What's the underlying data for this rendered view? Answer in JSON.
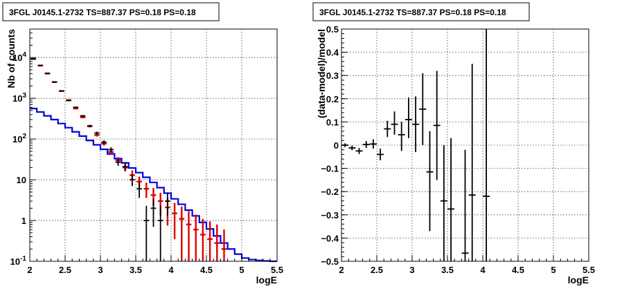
{
  "colors": {
    "data": "#000000",
    "model_sum": "#dd0000",
    "model_source": "#0000dd"
  },
  "chart_data": [
    {
      "type": "scatter",
      "title": "3FGL J0145.1-2732 TS=887.37 PS=0.18 PS=0.18",
      "xlabel": "logE",
      "ylabel": "Nb of counts",
      "xlim": [
        2,
        5.5
      ],
      "ylim": [
        0.1,
        50000
      ],
      "yscale": "log",
      "grid": true,
      "x_ticks": [
        {
          "v": 2,
          "label": "2"
        },
        {
          "v": 2.5,
          "label": "2.5"
        },
        {
          "v": 3,
          "label": "3"
        },
        {
          "v": 3.5,
          "label": "3.5"
        },
        {
          "v": 4,
          "label": "4"
        },
        {
          "v": 4.5,
          "label": "4.5"
        },
        {
          "v": 5,
          "label": "5"
        },
        {
          "v": 5.5,
          "label": "5.5"
        }
      ],
      "y_ticks": [
        {
          "v": 0.1,
          "base": "10",
          "exp": "-1"
        },
        {
          "v": 1,
          "base": "1",
          "exp": ""
        },
        {
          "v": 10,
          "base": "10",
          "exp": ""
        },
        {
          "v": 100,
          "base": "10",
          "exp": "2"
        },
        {
          "v": 1000,
          "base": "10",
          "exp": "3"
        },
        {
          "v": 10000,
          "base": "10",
          "exp": "4"
        }
      ],
      "bin_edges": [
        2.0,
        2.1,
        2.2,
        2.3,
        2.4,
        2.5,
        2.6,
        2.7,
        2.8,
        2.9,
        3.0,
        3.1,
        3.2,
        3.3,
        3.4,
        3.5,
        3.6,
        3.7,
        3.8,
        3.9,
        4.0,
        4.1,
        4.2,
        4.3,
        4.4,
        4.5,
        4.6,
        4.7,
        4.8,
        4.9,
        5.0,
        5.1,
        5.2,
        5.3,
        5.4,
        5.5
      ],
      "series": [
        {
          "role": "model_source",
          "style": "step",
          "values": [
            560,
            460,
            370,
            300,
            240,
            190,
            150,
            118,
            92,
            72,
            56,
            43,
            33,
            26,
            19.5,
            15,
            11.5,
            8.6,
            6.4,
            4.7,
            3.4,
            2.5,
            1.8,
            1.3,
            0.9,
            0.62,
            0.42,
            0.28,
            0.2,
            0.15,
            0.12,
            0.11,
            0.105,
            0.102,
            0.1
          ]
        },
        {
          "role": "model_sum",
          "style": "errorbar",
          "points": [
            {
              "x": 2.05,
              "y": 9200
            },
            {
              "x": 2.15,
              "y": 6400
            },
            {
              "x": 2.25,
              "y": 4100
            },
            {
              "x": 2.35,
              "y": 2500
            },
            {
              "x": 2.45,
              "y": 1500
            },
            {
              "x": 2.55,
              "y": 900,
              "lo": 860,
              "hi": 940
            },
            {
              "x": 2.65,
              "y": 560,
              "lo": 535,
              "hi": 585
            },
            {
              "x": 2.75,
              "y": 340,
              "lo": 322,
              "hi": 358
            },
            {
              "x": 2.85,
              "y": 205,
              "lo": 192,
              "hi": 218
            },
            {
              "x": 2.95,
              "y": 125,
              "lo": 115,
              "hi": 136
            },
            {
              "x": 3.05,
              "y": 77,
              "lo": 69,
              "hi": 86
            },
            {
              "x": 3.15,
              "y": 48,
              "lo": 42,
              "hi": 55
            },
            {
              "x": 3.25,
              "y": 30,
              "lo": 25,
              "hi": 36
            },
            {
              "x": 3.35,
              "y": 20,
              "lo": 16,
              "hi": 25
            },
            {
              "x": 3.45,
              "y": 13,
              "lo": 9.5,
              "hi": 17
            },
            {
              "x": 3.55,
              "y": 9,
              "lo": 6,
              "hi": 12
            },
            {
              "x": 3.65,
              "y": 6,
              "lo": 3.6,
              "hi": 8.5
            },
            {
              "x": 3.75,
              "y": 4.2,
              "lo": 2.3,
              "hi": 6.3
            },
            {
              "x": 3.85,
              "y": 3,
              "lo": 1.3,
              "hi": 4.8
            },
            {
              "x": 3.95,
              "y": 2.1,
              "lo": 0.75,
              "hi": 3.6
            },
            {
              "x": 4.05,
              "y": 1.5,
              "lo": 0.35,
              "hi": 2.7
            },
            {
              "x": 4.15,
              "y": 1.1,
              "lo": 0.1,
              "hi": 2.2
            },
            {
              "x": 4.25,
              "y": 0.8,
              "lo": 0.1,
              "hi": 1.7
            },
            {
              "x": 4.35,
              "y": 0.6,
              "lo": 0.1,
              "hi": 1.4
            },
            {
              "x": 4.45,
              "y": 0.45,
              "lo": 0.1,
              "hi": 1.1
            },
            {
              "x": 4.55,
              "y": 0.35,
              "lo": 0.1,
              "hi": 0.95
            },
            {
              "x": 4.65,
              "y": 0.28,
              "lo": 0.1,
              "hi": 0.8
            },
            {
              "x": 4.75,
              "y": 0.2,
              "lo": 0.1,
              "hi": 0.6
            }
          ]
        },
        {
          "role": "data",
          "style": "errorbar",
          "points": [
            {
              "x": 2.05,
              "y": 9300
            },
            {
              "x": 2.15,
              "y": 6300
            },
            {
              "x": 2.25,
              "y": 4000
            },
            {
              "x": 2.35,
              "y": 2500
            },
            {
              "x": 2.45,
              "y": 1520
            },
            {
              "x": 2.55,
              "y": 880,
              "lo": 850,
              "hi": 910
            },
            {
              "x": 2.65,
              "y": 600,
              "lo": 575,
              "hi": 625
            },
            {
              "x": 2.75,
              "y": 370,
              "lo": 350,
              "hi": 390
            },
            {
              "x": 2.85,
              "y": 210,
              "lo": 196,
              "hi": 224
            },
            {
              "x": 2.95,
              "y": 140,
              "lo": 128,
              "hi": 152
            },
            {
              "x": 3.05,
              "y": 84,
              "lo": 75,
              "hi": 93
            },
            {
              "x": 3.15,
              "y": 55,
              "lo": 48,
              "hi": 63
            },
            {
              "x": 3.25,
              "y": 27,
              "lo": 22,
              "hi": 32
            },
            {
              "x": 3.35,
              "y": 21,
              "lo": 17,
              "hi": 26
            },
            {
              "x": 3.45,
              "y": 10,
              "lo": 7,
              "hi": 13.5
            },
            {
              "x": 3.55,
              "y": 6,
              "lo": 3.6,
              "hi": 8.5
            },
            {
              "x": 3.65,
              "y": 1,
              "lo": 0.1,
              "hi": 2.3
            },
            {
              "x": 3.75,
              "y": 2,
              "lo": 0.7,
              "hi": 3.4
            },
            {
              "x": 3.85,
              "y": 1,
              "lo": 0.1,
              "hi": 2.3
            },
            {
              "x": 3.95,
              "y": 3,
              "lo": 1.3,
              "hi": 4.8
            }
          ]
        }
      ]
    },
    {
      "type": "scatter",
      "title": "3FGL J0145.1-2732 TS=887.37 PS=0.18 PS=0.18",
      "xlabel": "logE",
      "ylabel": "(data-model)/model",
      "xlim": [
        2,
        5.5
      ],
      "ylim": [
        -0.5,
        0.5
      ],
      "grid": true,
      "x_ticks": [
        {
          "v": 2,
          "label": "2"
        },
        {
          "v": 2.5,
          "label": "2.5"
        },
        {
          "v": 3,
          "label": "3"
        },
        {
          "v": 3.5,
          "label": "3.5"
        },
        {
          "v": 4,
          "label": "4"
        },
        {
          "v": 4.5,
          "label": "4.5"
        },
        {
          "v": 5,
          "label": "5"
        },
        {
          "v": 5.5,
          "label": "5.5"
        }
      ],
      "y_ticks": [
        {
          "v": -0.5,
          "label": "−0.5"
        },
        {
          "v": -0.4,
          "label": "−0.4"
        },
        {
          "v": -0.3,
          "label": "−0.3"
        },
        {
          "v": -0.2,
          "label": "−0.2"
        },
        {
          "v": -0.1,
          "label": "−0.1"
        },
        {
          "v": 0,
          "label": "0"
        },
        {
          "v": 0.1,
          "label": "0.1"
        },
        {
          "v": 0.2,
          "label": "0.2"
        },
        {
          "v": 0.3,
          "label": "0.3"
        },
        {
          "v": 0.4,
          "label": "0.4"
        },
        {
          "v": 0.5,
          "label": "0.5"
        }
      ],
      "series": [
        {
          "role": "data",
          "style": "errorbar",
          "points": [
            {
              "x": 2.05,
              "y": 0.0,
              "lo": -0.008,
              "hi": 0.008
            },
            {
              "x": 2.15,
              "y": -0.012,
              "lo": -0.022,
              "hi": -0.002
            },
            {
              "x": 2.25,
              "y": -0.025,
              "lo": -0.038,
              "hi": -0.012
            },
            {
              "x": 2.35,
              "y": 0.003,
              "lo": -0.012,
              "hi": 0.018
            },
            {
              "x": 2.45,
              "y": 0.005,
              "lo": -0.015,
              "hi": 0.025
            },
            {
              "x": 2.55,
              "y": -0.04,
              "lo": -0.065,
              "hi": -0.015
            },
            {
              "x": 2.65,
              "y": 0.07,
              "lo": 0.035,
              "hi": 0.105
            },
            {
              "x": 2.75,
              "y": 0.09,
              "lo": 0.045,
              "hi": 0.145
            },
            {
              "x": 2.85,
              "y": 0.045,
              "lo": -0.025,
              "hi": 0.1
            },
            {
              "x": 2.95,
              "y": 0.11,
              "lo": 0.03,
              "hi": 0.205
            },
            {
              "x": 3.05,
              "y": 0.09,
              "lo": -0.03,
              "hi": 0.21
            },
            {
              "x": 3.15,
              "y": 0.155,
              "lo": 0.0,
              "hi": 0.31
            },
            {
              "x": 3.25,
              "y": -0.115,
              "lo": -0.37,
              "hi": 0.06
            },
            {
              "x": 3.35,
              "y": 0.085,
              "lo": -0.15,
              "hi": 0.32
            },
            {
              "x": 3.45,
              "y": -0.24,
              "lo": -0.5,
              "hi": 0.0
            },
            {
              "x": 3.55,
              "y": -0.275,
              "lo": -0.5,
              "hi": 0.03
            },
            {
              "x": 3.75,
              "y": -0.465,
              "lo": -0.5,
              "hi": -0.02
            },
            {
              "x": 3.85,
              "y": -0.215,
              "lo": -0.5,
              "hi": 0.35
            },
            {
              "x": 4.05,
              "y": -0.22,
              "lo": -0.5,
              "hi": 0.5
            }
          ]
        }
      ]
    }
  ]
}
